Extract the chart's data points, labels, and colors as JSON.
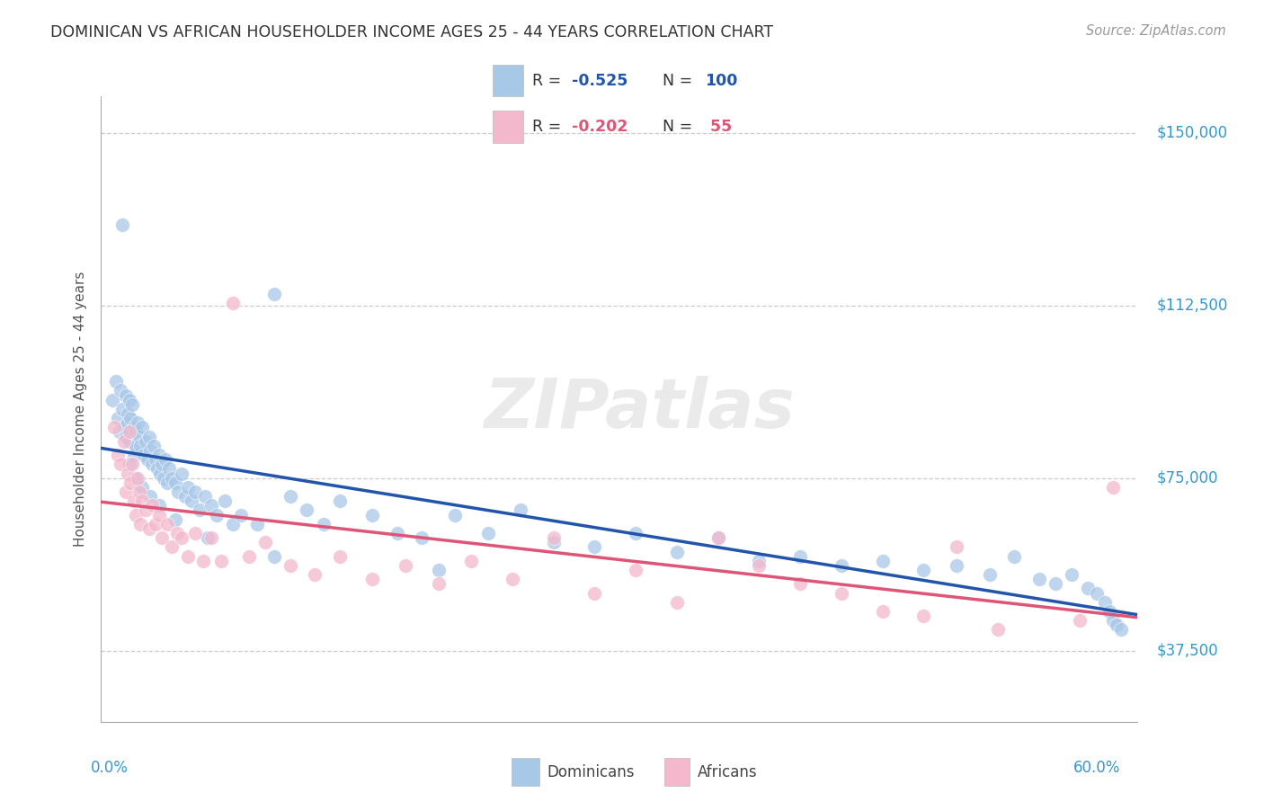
{
  "title": "DOMINICAN VS AFRICAN HOUSEHOLDER INCOME AGES 25 - 44 YEARS CORRELATION CHART",
  "source": "Source: ZipAtlas.com",
  "ylabel": "Householder Income Ages 25 - 44 years",
  "ytick_labels": [
    "$37,500",
    "$75,000",
    "$112,500",
    "$150,000"
  ],
  "ytick_values": [
    37500,
    75000,
    112500,
    150000
  ],
  "ymin": 22000,
  "ymax": 158000,
  "xmin": -0.005,
  "xmax": 0.625,
  "dominican_color": "#a8c8e8",
  "african_color": "#f4b8cc",
  "dominican_line_color": "#2255aa",
  "african_line_color": "#dd5577",
  "axis_label_color": "#3399cc",
  "watermark": "ZIPatlas",
  "dominican_x": [
    0.002,
    0.004,
    0.005,
    0.006,
    0.007,
    0.008,
    0.009,
    0.01,
    0.01,
    0.011,
    0.011,
    0.012,
    0.012,
    0.013,
    0.013,
    0.014,
    0.015,
    0.015,
    0.016,
    0.016,
    0.017,
    0.018,
    0.019,
    0.02,
    0.021,
    0.022,
    0.023,
    0.024,
    0.025,
    0.026,
    0.027,
    0.028,
    0.029,
    0.03,
    0.031,
    0.032,
    0.033,
    0.034,
    0.035,
    0.036,
    0.038,
    0.04,
    0.042,
    0.044,
    0.046,
    0.048,
    0.05,
    0.052,
    0.055,
    0.058,
    0.062,
    0.065,
    0.07,
    0.075,
    0.08,
    0.09,
    0.1,
    0.11,
    0.12,
    0.13,
    0.14,
    0.16,
    0.175,
    0.19,
    0.21,
    0.23,
    0.25,
    0.27,
    0.295,
    0.32,
    0.345,
    0.37,
    0.395,
    0.42,
    0.445,
    0.47,
    0.495,
    0.515,
    0.535,
    0.55,
    0.565,
    0.575,
    0.585,
    0.595,
    0.6,
    0.605,
    0.608,
    0.61,
    0.612,
    0.615,
    0.008,
    0.012,
    0.016,
    0.02,
    0.025,
    0.03,
    0.04,
    0.06,
    0.1,
    0.2
  ],
  "dominican_y": [
    92000,
    96000,
    88000,
    85000,
    94000,
    90000,
    86000,
    93000,
    84000,
    89000,
    87000,
    92000,
    83000,
    88000,
    85000,
    91000,
    86000,
    80000,
    85000,
    82000,
    87000,
    84000,
    82000,
    86000,
    80000,
    83000,
    79000,
    84000,
    81000,
    78000,
    82000,
    79000,
    77000,
    80000,
    76000,
    78000,
    75000,
    79000,
    74000,
    77000,
    75000,
    74000,
    72000,
    76000,
    71000,
    73000,
    70000,
    72000,
    68000,
    71000,
    69000,
    67000,
    70000,
    65000,
    67000,
    65000,
    115000,
    71000,
    68000,
    65000,
    70000,
    67000,
    63000,
    62000,
    67000,
    63000,
    68000,
    61000,
    60000,
    63000,
    59000,
    62000,
    57000,
    58000,
    56000,
    57000,
    55000,
    56000,
    54000,
    58000,
    53000,
    52000,
    54000,
    51000,
    50000,
    48000,
    46000,
    44000,
    43000,
    42000,
    130000,
    78000,
    75000,
    73000,
    71000,
    69000,
    66000,
    62000,
    58000,
    55000
  ],
  "african_x": [
    0.003,
    0.005,
    0.007,
    0.009,
    0.01,
    0.011,
    0.012,
    0.013,
    0.014,
    0.015,
    0.016,
    0.017,
    0.018,
    0.019,
    0.02,
    0.022,
    0.024,
    0.026,
    0.028,
    0.03,
    0.032,
    0.035,
    0.038,
    0.041,
    0.044,
    0.048,
    0.052,
    0.057,
    0.062,
    0.068,
    0.075,
    0.085,
    0.095,
    0.11,
    0.125,
    0.14,
    0.16,
    0.18,
    0.2,
    0.22,
    0.245,
    0.27,
    0.295,
    0.32,
    0.345,
    0.37,
    0.395,
    0.42,
    0.445,
    0.47,
    0.495,
    0.515,
    0.54,
    0.59,
    0.61
  ],
  "african_y": [
    86000,
    80000,
    78000,
    83000,
    72000,
    76000,
    85000,
    74000,
    78000,
    70000,
    67000,
    75000,
    72000,
    65000,
    70000,
    68000,
    64000,
    69000,
    65000,
    67000,
    62000,
    65000,
    60000,
    63000,
    62000,
    58000,
    63000,
    57000,
    62000,
    57000,
    113000,
    58000,
    61000,
    56000,
    54000,
    58000,
    53000,
    56000,
    52000,
    57000,
    53000,
    62000,
    50000,
    55000,
    48000,
    62000,
    56000,
    52000,
    50000,
    46000,
    45000,
    60000,
    42000,
    44000,
    73000
  ]
}
